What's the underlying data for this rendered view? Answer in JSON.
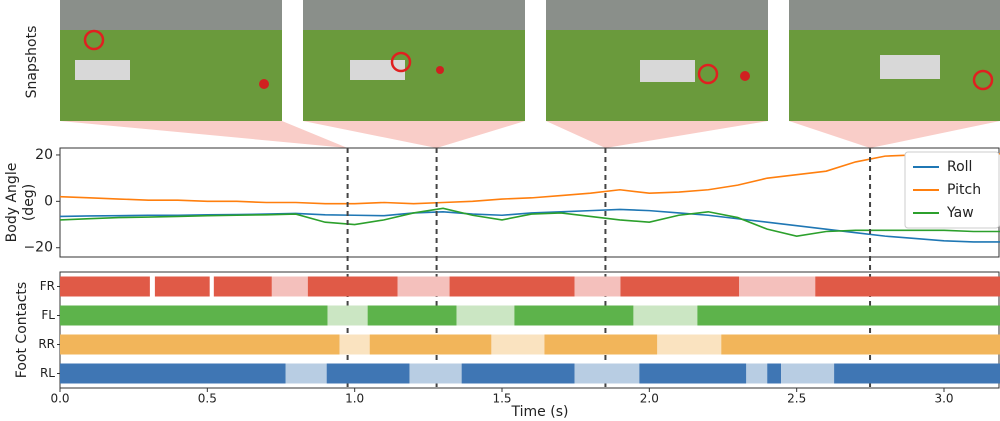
{
  "snapshots": {
    "label": "Snapshots"
  },
  "chart_data": [
    {
      "type": "line",
      "ylabel": [
        "Body Angle",
        "(deg)"
      ],
      "xlim": [
        0,
        3.19
      ],
      "ylim": [
        -24,
        23
      ],
      "yticks": [
        {
          "value": -20,
          "label": "−20"
        },
        0,
        20
      ],
      "events": [
        0.976,
        1.278,
        1.851,
        2.749
      ],
      "legend": "upper right",
      "x": [
        0,
        0.1,
        0.2,
        0.3,
        0.4,
        0.5,
        0.6,
        0.7,
        0.8,
        0.9,
        1.0,
        1.1,
        1.2,
        1.3,
        1.4,
        1.5,
        1.6,
        1.7,
        1.8,
        1.9,
        2.0,
        2.1,
        2.2,
        2.3,
        2.4,
        2.5,
        2.6,
        2.7,
        2.8,
        2.9,
        3.0,
        3.1,
        3.19
      ],
      "series": [
        {
          "name": "Roll",
          "color": "#1f77b4",
          "values": [
            -6.5,
            -6.3,
            -6.2,
            -6,
            -6,
            -5.8,
            -5.7,
            -5.5,
            -5.2,
            -5.8,
            -6,
            -6.2,
            -5,
            -4.5,
            -5.5,
            -6,
            -5,
            -4.5,
            -4,
            -3.5,
            -4,
            -5,
            -6,
            -7.5,
            -9,
            -10.5,
            -12,
            -13.5,
            -15,
            -16,
            -17,
            -17.5,
            -17.5
          ]
        },
        {
          "name": "Pitch",
          "color": "#ff7f0e",
          "values": [
            2,
            1.5,
            1,
            0.5,
            0.5,
            0,
            0,
            -0.5,
            -0.5,
            -1,
            -1,
            -0.5,
            -1,
            -0.5,
            0,
            1,
            1.5,
            2.5,
            3.5,
            5,
            3.5,
            4,
            5,
            7,
            10,
            11.5,
            13,
            17,
            19.5,
            20,
            20.5,
            20.5,
            20.5
          ]
        },
        {
          "name": "Yaw",
          "color": "#2ca02c",
          "values": [
            -8,
            -7.5,
            -7,
            -6.8,
            -6.5,
            -6.2,
            -6,
            -5.8,
            -5.5,
            -9,
            -10,
            -8,
            -5,
            -3,
            -6,
            -8,
            -5.5,
            -5,
            -6.5,
            -8,
            -9,
            -6,
            -4.5,
            -7,
            -12,
            -15,
            -13,
            -12.5,
            -12.5,
            -12.5,
            -12.5,
            -13,
            -13
          ]
        }
      ]
    },
    {
      "type": "timeline",
      "ylabel": "Foot Contacts",
      "xlabel": "Time (s)",
      "xlim": [
        0,
        3.19
      ],
      "xticks": [
        {
          "value": 0,
          "label": "0.0"
        },
        0.5,
        {
          "value": 1,
          "label": "1.0"
        },
        1.5,
        {
          "value": 2,
          "label": "2.0"
        },
        2.5,
        {
          "value": 3,
          "label": "3.0"
        }
      ],
      "rows": [
        {
          "name": "FR",
          "color": "#e05a47",
          "swing_color": "#f4c0bc",
          "segments": [
            {
              "start": 0,
              "end": 0.305,
              "contact": true
            },
            {
              "start": 0.322,
              "end": 0.508,
              "contact": true
            },
            {
              "start": 0.522,
              "end": 0.719,
              "contact": true
            },
            {
              "start": 0.719,
              "end": 0.841,
              "contact": false
            },
            {
              "start": 0.841,
              "end": 1.146,
              "contact": true
            },
            {
              "start": 1.146,
              "end": 1.322,
              "contact": false
            },
            {
              "start": 1.322,
              "end": 1.746,
              "contact": true
            },
            {
              "start": 1.746,
              "end": 1.902,
              "contact": false
            },
            {
              "start": 1.902,
              "end": 2.305,
              "contact": true
            },
            {
              "start": 2.305,
              "end": 2.563,
              "contact": false
            },
            {
              "start": 2.563,
              "end": 3.19,
              "contact": true
            }
          ]
        },
        {
          "name": "FL",
          "color": "#5db34b",
          "swing_color": "#cbe6c3",
          "segments": [
            {
              "start": 0,
              "end": 0.908,
              "contact": true
            },
            {
              "start": 0.908,
              "end": 1.044,
              "contact": false
            },
            {
              "start": 1.044,
              "end": 1.346,
              "contact": true
            },
            {
              "start": 1.346,
              "end": 1.542,
              "contact": false
            },
            {
              "start": 1.542,
              "end": 1.946,
              "contact": true
            },
            {
              "start": 1.946,
              "end": 2.163,
              "contact": false
            },
            {
              "start": 2.163,
              "end": 3.19,
              "contact": true
            }
          ]
        },
        {
          "name": "RR",
          "color": "#f2b55a",
          "swing_color": "#fae3c0",
          "segments": [
            {
              "start": 0,
              "end": 0.949,
              "contact": true
            },
            {
              "start": 0.949,
              "end": 1.051,
              "contact": false
            },
            {
              "start": 1.051,
              "end": 1.464,
              "contact": true
            },
            {
              "start": 1.464,
              "end": 1.644,
              "contact": false
            },
            {
              "start": 1.644,
              "end": 2.027,
              "contact": true
            },
            {
              "start": 2.027,
              "end": 2.244,
              "contact": false
            },
            {
              "start": 2.244,
              "end": 3.19,
              "contact": true
            }
          ]
        },
        {
          "name": "RL",
          "color": "#3f76b4",
          "swing_color": "#b8cde3",
          "segments": [
            {
              "start": 0,
              "end": 0.766,
              "contact": true
            },
            {
              "start": 0.766,
              "end": 0.905,
              "contact": false
            },
            {
              "start": 0.905,
              "end": 1.186,
              "contact": true
            },
            {
              "start": 1.186,
              "end": 1.363,
              "contact": false
            },
            {
              "start": 1.363,
              "end": 1.746,
              "contact": true
            },
            {
              "start": 1.746,
              "end": 1.966,
              "contact": false
            },
            {
              "start": 1.966,
              "end": 2.329,
              "contact": true
            },
            {
              "start": 2.329,
              "end": 2.4,
              "contact": false
            },
            {
              "start": 2.4,
              "end": 2.447,
              "contact": true
            },
            {
              "start": 2.447,
              "end": 2.627,
              "contact": false
            },
            {
              "start": 2.627,
              "end": 3.19,
              "contact": true
            }
          ]
        }
      ]
    }
  ]
}
